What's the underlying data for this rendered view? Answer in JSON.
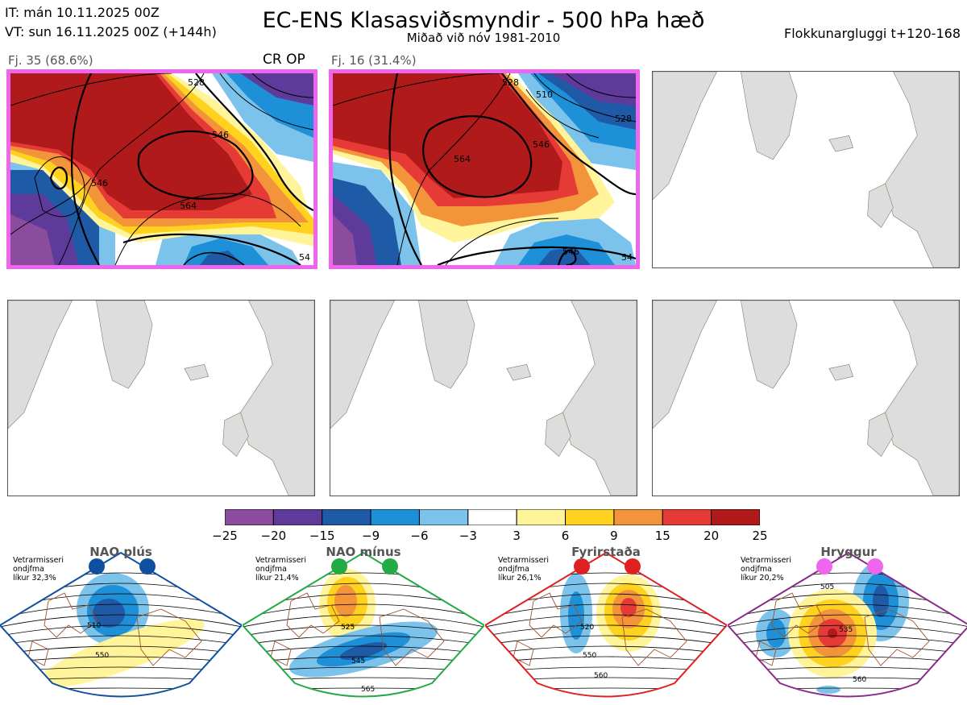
{
  "header": {
    "it": "IT: mán 10.11.2025 00Z",
    "vt": "VT: sun 16.11.2025 00Z  (+144h)",
    "title": "EC-ENS Klasasviðsmyndir - 500 hPa hæð",
    "subtitle": "Miðað við nóv 1981-2010",
    "window": "Flokkunargluggi t+120-168"
  },
  "panels": [
    {
      "label": "Fj. 35 (68.6%)",
      "tag": "CR OP",
      "contours": [
        "528",
        "546",
        "564",
        "546",
        "54"
      ]
    },
    {
      "label": "Fj. 16 (31.4%)",
      "tag": "",
      "contours": [
        "510",
        "528",
        "546",
        "528",
        "564",
        "546",
        "54"
      ]
    }
  ],
  "colorbar": {
    "colors": [
      "#8b4c9d",
      "#5e3a9a",
      "#1f5aa6",
      "#1e90d8",
      "#7cc3ec",
      "#ffffff",
      "#fff49a",
      "#ffd21f",
      "#f4943a",
      "#e53a35",
      "#b01a1a"
    ],
    "labels": [
      "−25",
      "−20",
      "−15",
      "−9",
      "−6",
      "−3",
      "3",
      "6",
      "9",
      "15",
      "20",
      "25"
    ]
  },
  "regimes": [
    {
      "title": "NAO plús",
      "note": "Vetrarmisseri\nondjfma\nlíkur 32,3%",
      "dot_color": "#1050a0",
      "border_color": "#1050a0",
      "contours": [
        "510",
        "550"
      ]
    },
    {
      "title": "NAO mínus",
      "note": "Vetrarmisseri\nondjfma\nlíkur 21,4%",
      "dot_color": "#22aa44",
      "border_color": "#22aa44",
      "contours": [
        "525",
        "545",
        "565"
      ]
    },
    {
      "title": "Fyrirstaða",
      "note": "Vetrarmisseri\nondjfma\nlíkur 26,1%",
      "dot_color": "#e02020",
      "border_color": "#e02020",
      "contours": [
        "520",
        "550",
        "560"
      ]
    },
    {
      "title": "Hryggur",
      "note": "Vetrarmisseri\nondjfma\nlíkur 20,2%",
      "dot_color": "#ee66ee",
      "border_color": "#8a2a8a",
      "contours": [
        "505",
        "535",
        "560"
      ]
    }
  ]
}
